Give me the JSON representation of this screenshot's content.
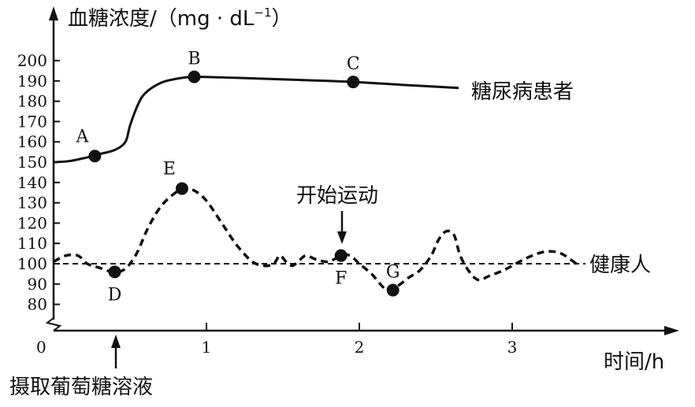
{
  "chart_data": {
    "type": "line",
    "ylabel": "血糖浓度/（mg · dL",
    "ylabel_sup": "−1",
    "ylabel_close": "）",
    "xlabel": "时间/h",
    "origin_label": "0",
    "x_ticks": [
      "1",
      "2",
      "3"
    ],
    "y_ticks": [
      "80",
      "90",
      "100",
      "110",
      "120",
      "130",
      "140",
      "150",
      "160",
      "170",
      "180",
      "190",
      "200"
    ],
    "ylim": [
      80,
      200
    ],
    "xlim": [
      0,
      3.5
    ],
    "annotations": {
      "glucose_intake": "摄取葡萄糖溶液",
      "exercise_start": "开始运动"
    },
    "series": [
      {
        "name": "糖尿病患者",
        "style": "solid",
        "x": [
          0.0,
          0.1,
          0.2,
          0.3,
          0.4,
          0.47,
          0.5,
          0.55,
          0.6,
          0.7,
          0.8,
          0.92,
          1.2,
          1.6,
          1.96,
          2.3,
          2.65
        ],
        "y": [
          150,
          150.5,
          152,
          154,
          156,
          160,
          168,
          178,
          184,
          189,
          191,
          192,
          191.5,
          190.5,
          189.5,
          188,
          186.5
        ]
      },
      {
        "name": "健康人",
        "style": "dashed",
        "x": [
          0.0,
          0.08,
          0.16,
          0.22,
          0.3,
          0.38,
          0.42,
          0.46,
          0.5,
          0.55,
          0.62,
          0.7,
          0.78,
          0.85,
          0.92,
          1.0,
          1.1,
          1.2,
          1.3,
          1.38,
          1.44,
          1.48,
          1.52,
          1.56,
          1.6,
          1.65,
          1.72,
          1.8,
          1.88,
          1.94,
          2.0,
          2.08,
          2.18,
          2.25,
          2.32,
          2.4,
          2.47,
          2.52,
          2.57,
          2.62,
          2.66,
          2.72,
          2.78,
          2.85,
          2.95,
          3.1,
          3.22,
          3.32,
          3.42
        ],
        "y": [
          101,
          104,
          104,
          100,
          98,
          96,
          96,
          97,
          100,
          106,
          118,
          128,
          134,
          137,
          136,
          131,
          120,
          109,
          101,
          99,
          100,
          104,
          101,
          99,
          101,
          104,
          102,
          101,
          104,
          104,
          100,
          95,
          87,
          89,
          93,
          97,
          104,
          112,
          116,
          114,
          104,
          96,
          92,
          94,
          97,
          103,
          106,
          105,
          100
        ]
      }
    ],
    "baseline": {
      "y": 100,
      "style": "dashed",
      "label": "健康人"
    },
    "points": [
      {
        "label": "A",
        "x": 0.27,
        "y": 153,
        "series": "糖尿病患者",
        "label_pos": "above-left"
      },
      {
        "label": "B",
        "x": 0.92,
        "y": 192,
        "series": "糖尿病患者",
        "label_pos": "above"
      },
      {
        "label": "C",
        "x": 1.96,
        "y": 189.5,
        "series": "糖尿病患者",
        "label_pos": "above"
      },
      {
        "label": "D",
        "x": 0.4,
        "y": 96,
        "series": "健康人",
        "label_pos": "below"
      },
      {
        "label": "E",
        "x": 0.84,
        "y": 137,
        "series": "健康人",
        "label_pos": "above-left"
      },
      {
        "label": "F",
        "x": 1.88,
        "y": 104,
        "series": "健康人",
        "label_pos": "below"
      },
      {
        "label": "G",
        "x": 2.22,
        "y": 87,
        "series": "健康人",
        "label_pos": "above"
      }
    ],
    "series_labels": {
      "diabetic": "糖尿病患者",
      "healthy": "健康人"
    },
    "grid": false,
    "legend": "none"
  }
}
